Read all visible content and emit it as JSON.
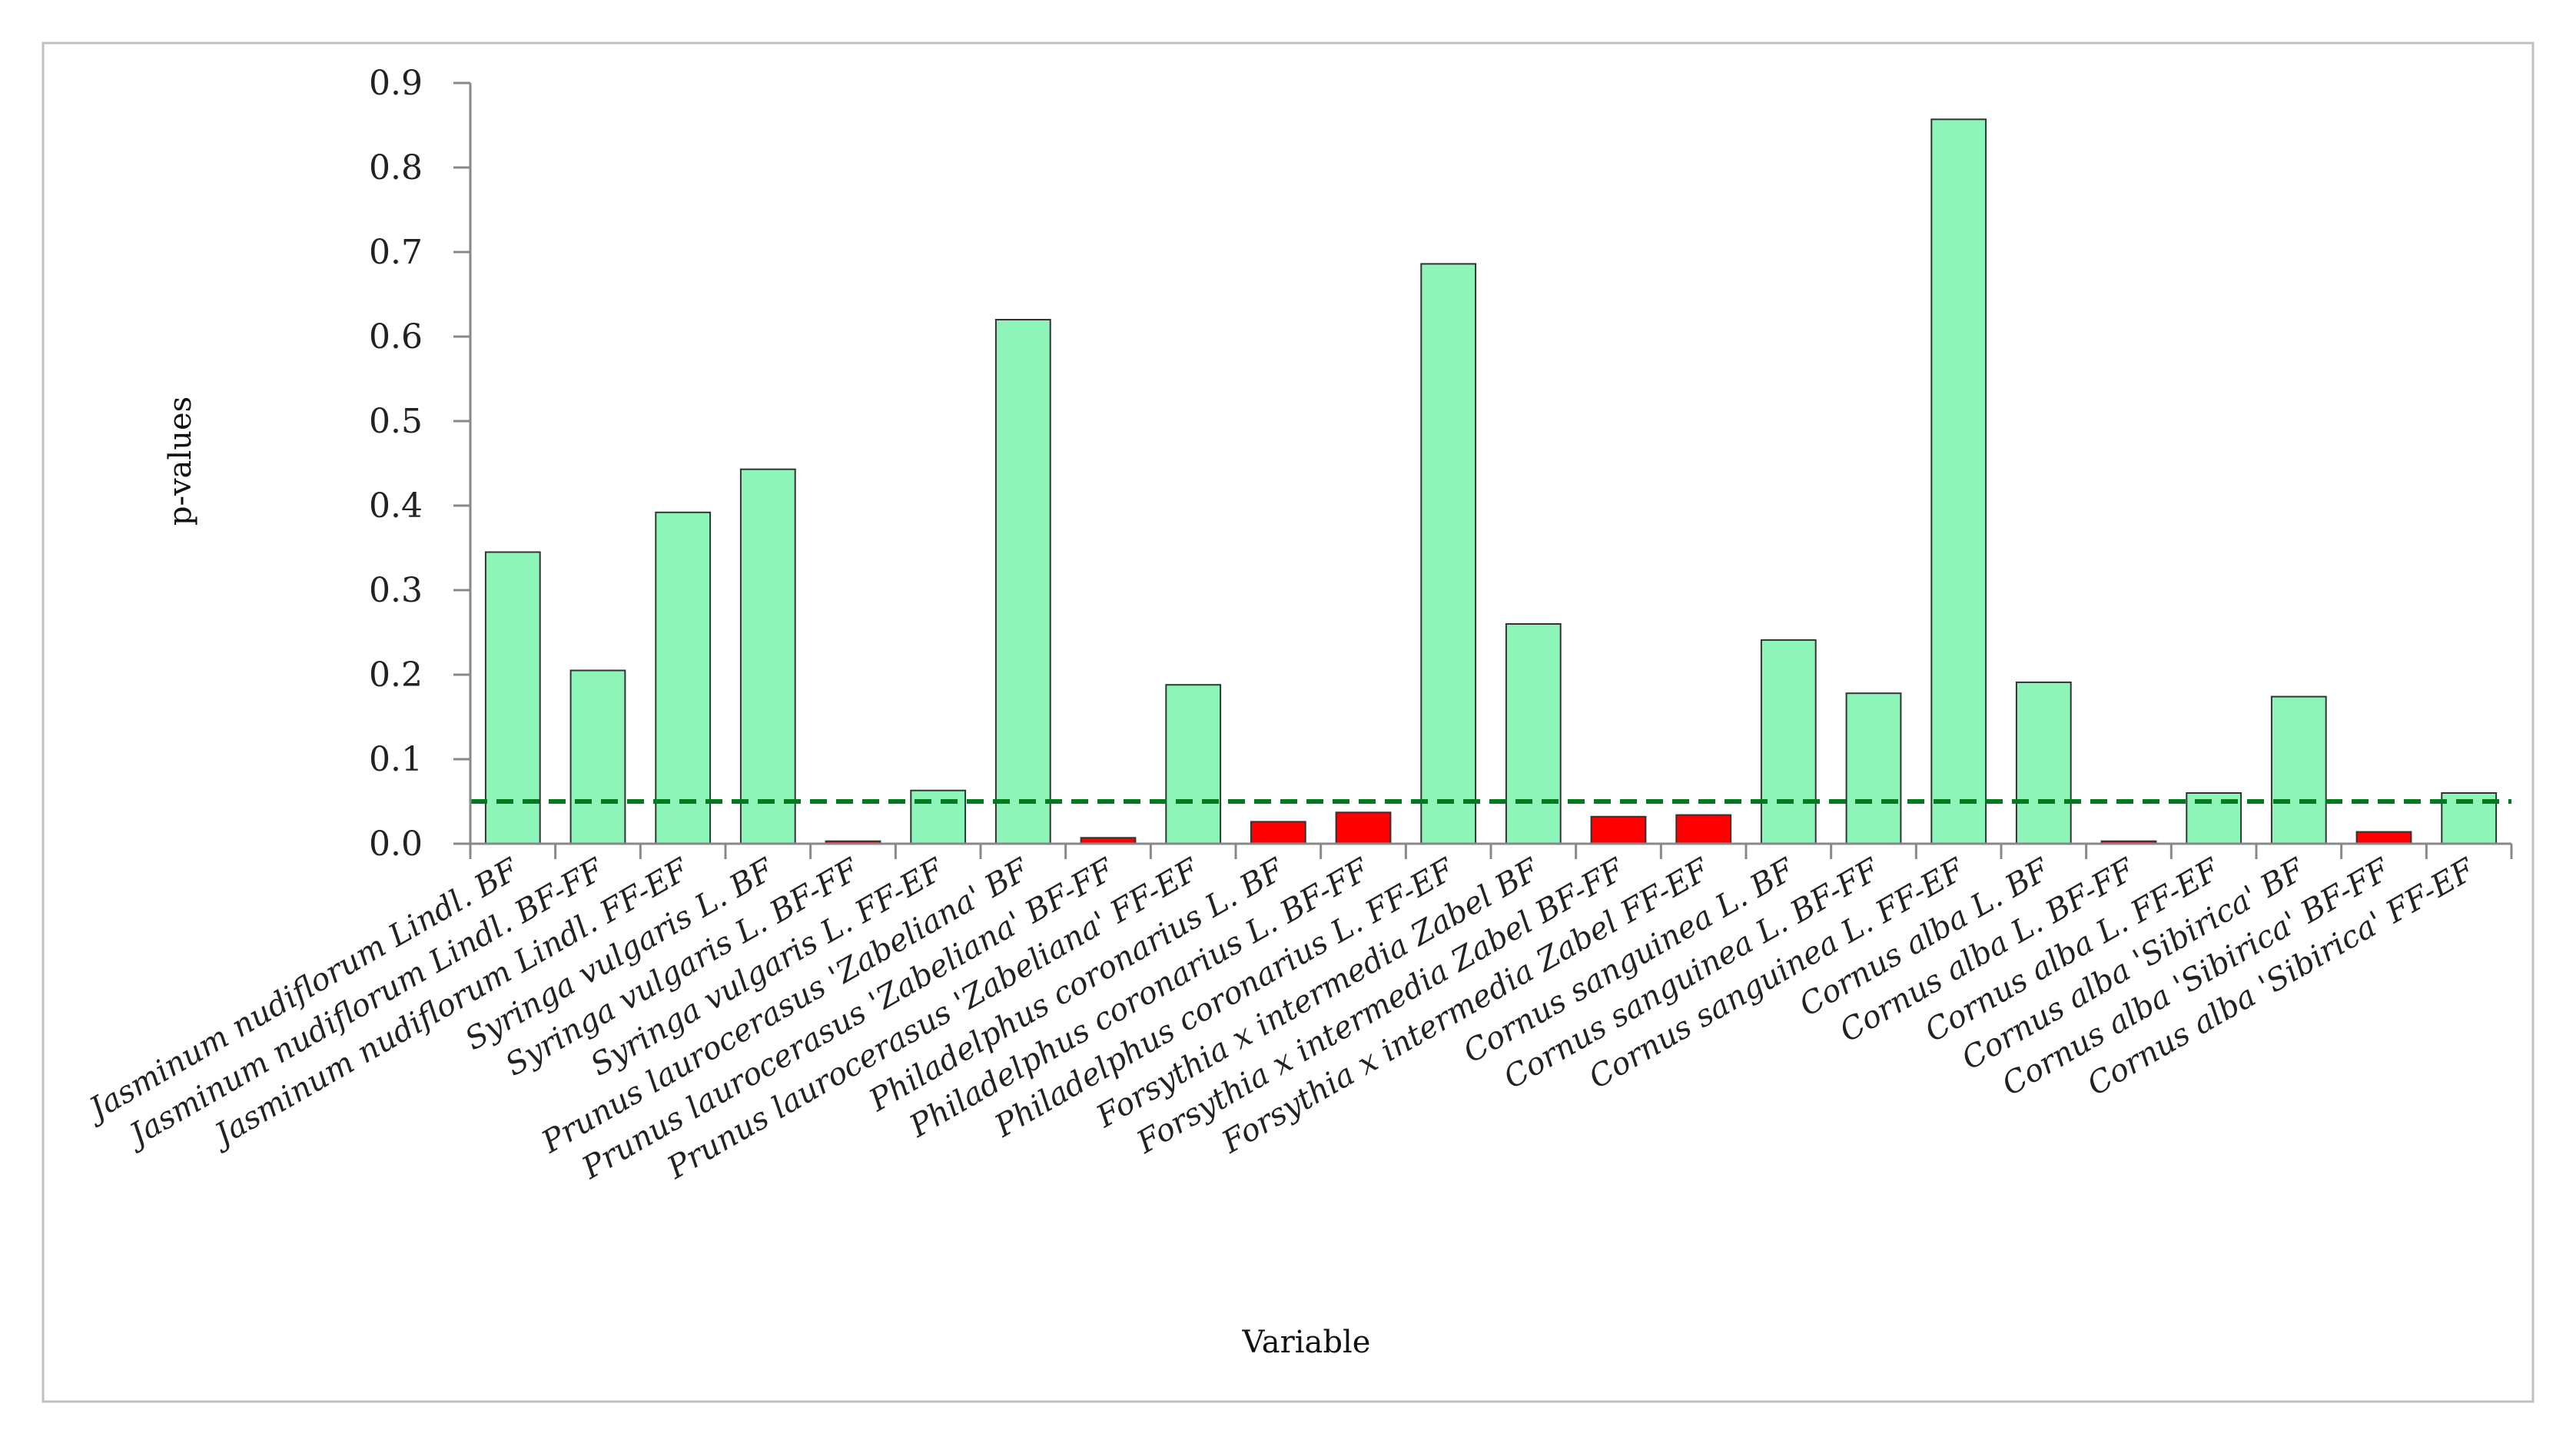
{
  "chart_data": {
    "type": "bar",
    "title": "",
    "xlabel": "Variable",
    "ylabel": "p-values",
    "ylim": [
      0,
      0.9
    ],
    "yticks": [
      "0.0",
      "0.1",
      "0.2",
      "0.3",
      "0.4",
      "0.5",
      "0.6",
      "0.7",
      "0.8",
      "0.9"
    ],
    "threshold": 0.05,
    "colors": {
      "significant": "#ff0000",
      "not_significant": "#8ef5b9",
      "threshold_line": "#007a1e",
      "frame": "#c0c0c0",
      "axis": "#888888"
    },
    "categories": [
      "Jasminum nudiflorum Lindl.  BF",
      "Jasminum nudiflorum Lindl.  BF-FF",
      "Jasminum nudiflorum Lindl. FF-EF",
      "Syringa vulgaris L.  BF",
      "Syringa vulgaris L.  BF-FF",
      "Syringa vulgaris L.   FF-EF",
      "Prunus laurocerasus 'Zabeliana'  BF",
      "Prunus laurocerasus 'Zabeliana' BF-FF",
      "Prunus laurocerasus 'Zabeliana'  FF-EF",
      "Philadelphus coronarius L.  BF",
      "Philadelphus coronarius L.  BF-FF",
      "Philadelphus coronarius L.   FF-EF",
      "Forsythia x intermedia Zabel  BF",
      "Forsythia x intermedia Zabel BF-FF",
      "Forsythia x intermedia Zabel  FF-EF",
      "Cornus sanguinea L.  BF",
      "Cornus sanguinea L.  BF-FF",
      "Cornus sanguinea L.   FF-EF",
      "Cornus alba L.  BF",
      "Cornus alba L.  BF-FF",
      "Cornus alba L.  FF-EF",
      "Cornus alba 'Sibirica'  BF",
      "Cornus alba 'Sibirica'  BF-FF",
      "Cornus alba 'Sibirica'   FF-EF"
    ],
    "values": [
      0.345,
      0.205,
      0.392,
      0.443,
      0.003,
      0.063,
      0.62,
      0.007,
      0.188,
      0.026,
      0.037,
      0.686,
      0.26,
      0.032,
      0.034,
      0.241,
      0.178,
      0.857,
      0.191,
      0.003,
      0.06,
      0.174,
      0.014,
      0.06
    ],
    "legend": []
  }
}
